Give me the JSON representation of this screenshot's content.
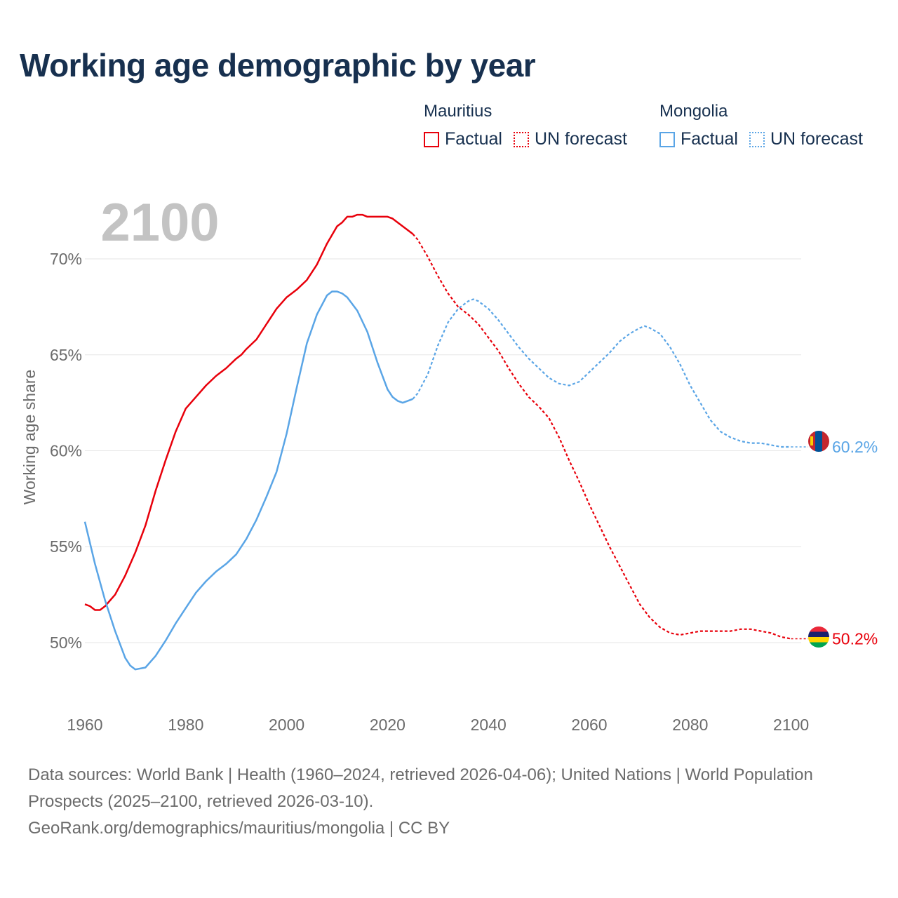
{
  "title": "Working age demographic by year",
  "legend": {
    "groups": [
      {
        "country": "Mauritius",
        "color": "#e8000b",
        "factual": "Factual",
        "forecast": "UN forecast"
      },
      {
        "country": "Mongolia",
        "color": "#5aa5e6",
        "factual": "Factual",
        "forecast": "UN forecast"
      }
    ]
  },
  "chart_data": {
    "type": "line",
    "title": "Working age demographic by year",
    "year_label": "2100",
    "xlabel": "",
    "ylabel": "Working age share",
    "xlim": [
      1960,
      2102
    ],
    "ylim": [
      47,
      73
    ],
    "x_ticks": [
      1960,
      1980,
      2000,
      2020,
      2040,
      2060,
      2080,
      2100
    ],
    "y_ticks": [
      50,
      55,
      60,
      65,
      70
    ],
    "y_tick_labels": [
      "50%",
      "55%",
      "60%",
      "65%",
      "70%"
    ],
    "factual_end_year": 2025,
    "grid": true,
    "series": [
      {
        "name": "Mauritius",
        "color": "#e8000b",
        "end_label": "50.2%",
        "x": [
          1960,
          1961,
          1962,
          1963,
          1964,
          1966,
          1968,
          1970,
          1972,
          1974,
          1976,
          1978,
          1980,
          1982,
          1984,
          1986,
          1988,
          1990,
          1991,
          1992,
          1994,
          1996,
          1998,
          2000,
          2002,
          2004,
          2006,
          2008,
          2010,
          2011,
          2012,
          2013,
          2014,
          2015,
          2016,
          2018,
          2020,
          2021,
          2022,
          2024,
          2025,
          2026,
          2028,
          2030,
          2032,
          2034,
          2036,
          2038,
          2040,
          2042,
          2044,
          2046,
          2048,
          2050,
          2052,
          2054,
          2056,
          2058,
          2060,
          2062,
          2064,
          2066,
          2068,
          2070,
          2072,
          2074,
          2076,
          2078,
          2080,
          2082,
          2084,
          2086,
          2088,
          2090,
          2092,
          2094,
          2096,
          2098,
          2100
        ],
        "values": [
          52.0,
          51.9,
          51.7,
          51.7,
          51.9,
          52.5,
          53.5,
          54.7,
          56.1,
          57.9,
          59.5,
          61.0,
          62.2,
          62.8,
          63.4,
          63.9,
          64.3,
          64.8,
          65.0,
          65.3,
          65.8,
          66.6,
          67.4,
          68.0,
          68.4,
          68.9,
          69.7,
          70.8,
          71.7,
          71.9,
          72.2,
          72.2,
          72.3,
          72.3,
          72.2,
          72.2,
          72.2,
          72.1,
          71.9,
          71.5,
          71.3,
          71.0,
          70.1,
          69.1,
          68.2,
          67.5,
          67.1,
          66.6,
          65.9,
          65.2,
          64.3,
          63.5,
          62.8,
          62.3,
          61.7,
          60.7,
          59.5,
          58.4,
          57.2,
          56.1,
          55.0,
          54.0,
          53.0,
          52.0,
          51.3,
          50.8,
          50.5,
          50.4,
          50.5,
          50.6,
          50.6,
          50.6,
          50.6,
          50.7,
          50.7,
          50.6,
          50.5,
          50.3,
          50.2
        ]
      },
      {
        "name": "Mongolia",
        "color": "#5aa5e6",
        "end_label": "60.2%",
        "x": [
          1960,
          1962,
          1964,
          1966,
          1968,
          1969,
          1970,
          1972,
          1974,
          1976,
          1978,
          1980,
          1982,
          1984,
          1986,
          1988,
          1990,
          1992,
          1994,
          1996,
          1998,
          2000,
          2002,
          2004,
          2006,
          2008,
          2009,
          2010,
          2011,
          2012,
          2014,
          2016,
          2018,
          2019,
          2020,
          2021,
          2022,
          2023,
          2024,
          2025,
          2026,
          2028,
          2030,
          2032,
          2034,
          2036,
          2037,
          2038,
          2040,
          2042,
          2044,
          2046,
          2048,
          2050,
          2052,
          2054,
          2056,
          2058,
          2060,
          2062,
          2064,
          2066,
          2068,
          2070,
          2071,
          2072,
          2074,
          2076,
          2078,
          2080,
          2082,
          2084,
          2086,
          2088,
          2090,
          2092,
          2094,
          2096,
          2098,
          2100
        ],
        "values": [
          56.3,
          54.1,
          52.2,
          50.6,
          49.2,
          48.8,
          48.6,
          48.7,
          49.3,
          50.1,
          51.0,
          51.8,
          52.6,
          53.2,
          53.7,
          54.1,
          54.6,
          55.4,
          56.4,
          57.6,
          58.9,
          60.9,
          63.3,
          65.6,
          67.1,
          68.1,
          68.3,
          68.3,
          68.2,
          68.0,
          67.3,
          66.2,
          64.6,
          63.9,
          63.2,
          62.8,
          62.6,
          62.5,
          62.6,
          62.7,
          63.0,
          64.0,
          65.5,
          66.7,
          67.4,
          67.8,
          67.9,
          67.8,
          67.4,
          66.8,
          66.1,
          65.4,
          64.8,
          64.3,
          63.8,
          63.5,
          63.4,
          63.6,
          64.1,
          64.6,
          65.1,
          65.7,
          66.1,
          66.4,
          66.5,
          66.4,
          66.1,
          65.4,
          64.5,
          63.4,
          62.5,
          61.6,
          61.0,
          60.7,
          60.5,
          60.4,
          60.4,
          60.3,
          60.2,
          60.2
        ]
      }
    ]
  },
  "footer": {
    "sources": "Data sources: World Bank | Health (1960–2024, retrieved 2026-04-06); United Nations | World Population Prospects (2025–2100, retrieved 2026-03-10).",
    "url": "GeoRank.org/demographics/mauritius/mongolia | CC BY"
  }
}
